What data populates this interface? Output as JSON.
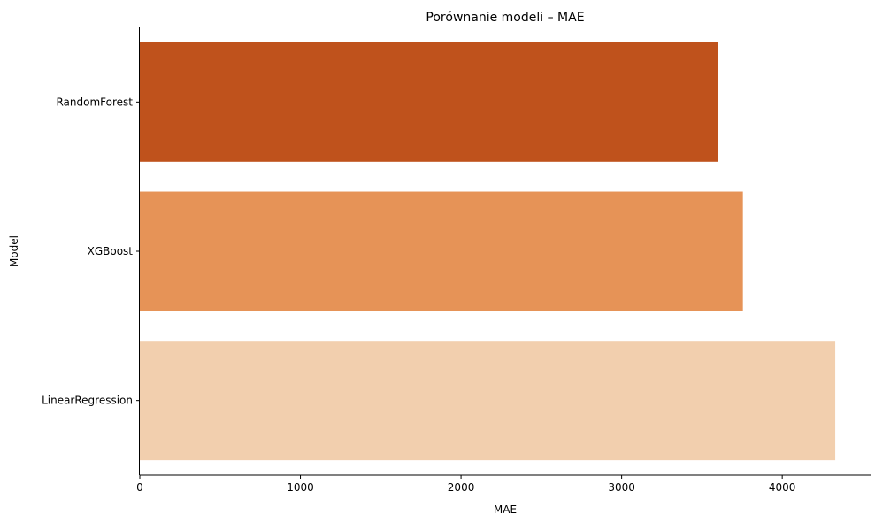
{
  "chart_data": {
    "type": "bar",
    "orientation": "horizontal",
    "title": "Porównanie modeli – MAE",
    "xlabel": "MAE",
    "ylabel": "Model",
    "categories": [
      "RandomForest",
      "XGBoost",
      "LinearRegression"
    ],
    "values": [
      3600,
      3755,
      4330
    ],
    "colors": [
      "#bf521c",
      "#e69357",
      "#f2cfae"
    ],
    "xlim": [
      0,
      4550
    ],
    "xticks": [
      0,
      1000,
      2000,
      3000,
      4000
    ],
    "xtick_labels": [
      "0",
      "1000",
      "2000",
      "3000",
      "4000"
    ],
    "grid": false,
    "legend": "none"
  }
}
